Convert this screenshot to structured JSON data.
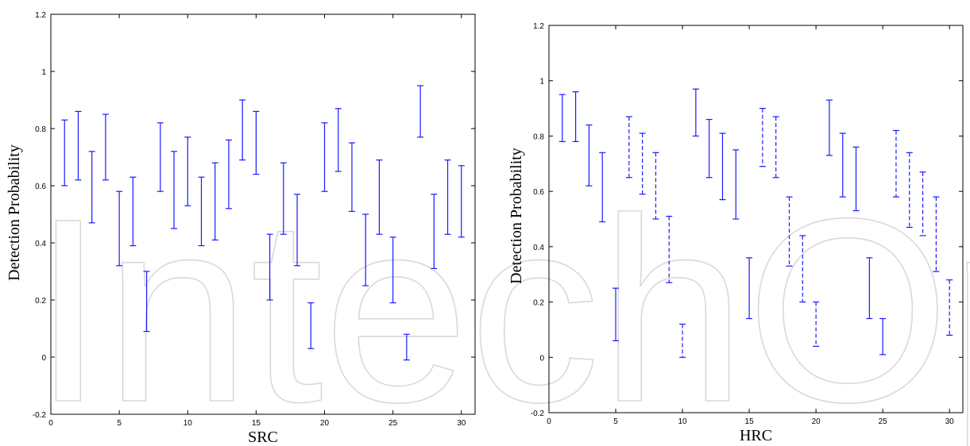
{
  "watermark": "IntechOpen",
  "colors": {
    "series": "#1a1aff",
    "axis": "#000000",
    "watermark": "#d9d9d9"
  },
  "chart_data": [
    {
      "type": "errorbar",
      "xlabel": "SRC",
      "ylabel": "Detection Probability",
      "xlim": [
        0,
        31
      ],
      "ylim": [
        -0.2,
        1.2
      ],
      "xticks": [
        0,
        5,
        10,
        15,
        20,
        25,
        30
      ],
      "yticks": [
        -0.2,
        0,
        0.2,
        0.4,
        0.6,
        0.8,
        1,
        1.2
      ],
      "ytick_labels": [
        "-0.2",
        "0",
        "0.2",
        "0.4",
        "0.6",
        "0.8",
        "1",
        "1.2"
      ],
      "intervals": [
        {
          "x": 1,
          "low": 0.6,
          "high": 0.83,
          "style": "solid"
        },
        {
          "x": 2,
          "low": 0.62,
          "high": 0.86,
          "style": "solid"
        },
        {
          "x": 3,
          "low": 0.47,
          "high": 0.72,
          "style": "solid"
        },
        {
          "x": 4,
          "low": 0.62,
          "high": 0.85,
          "style": "solid"
        },
        {
          "x": 5,
          "low": 0.32,
          "high": 0.58,
          "style": "solid"
        },
        {
          "x": 6,
          "low": 0.39,
          "high": 0.63,
          "style": "solid"
        },
        {
          "x": 7,
          "low": 0.09,
          "high": 0.3,
          "style": "solid"
        },
        {
          "x": 8,
          "low": 0.58,
          "high": 0.82,
          "style": "solid"
        },
        {
          "x": 9,
          "low": 0.45,
          "high": 0.72,
          "style": "solid"
        },
        {
          "x": 10,
          "low": 0.53,
          "high": 0.77,
          "style": "solid"
        },
        {
          "x": 11,
          "low": 0.39,
          "high": 0.63,
          "style": "solid"
        },
        {
          "x": 12,
          "low": 0.41,
          "high": 0.68,
          "style": "solid"
        },
        {
          "x": 13,
          "low": 0.52,
          "high": 0.76,
          "style": "solid"
        },
        {
          "x": 14,
          "low": 0.69,
          "high": 0.9,
          "style": "solid"
        },
        {
          "x": 15,
          "low": 0.64,
          "high": 0.86,
          "style": "solid"
        },
        {
          "x": 16,
          "low": 0.2,
          "high": 0.43,
          "style": "solid"
        },
        {
          "x": 17,
          "low": 0.43,
          "high": 0.68,
          "style": "solid"
        },
        {
          "x": 18,
          "low": 0.32,
          "high": 0.57,
          "style": "solid"
        },
        {
          "x": 19,
          "low": 0.03,
          "high": 0.19,
          "style": "solid"
        },
        {
          "x": 20,
          "low": 0.58,
          "high": 0.82,
          "style": "solid"
        },
        {
          "x": 21,
          "low": 0.65,
          "high": 0.87,
          "style": "solid"
        },
        {
          "x": 22,
          "low": 0.51,
          "high": 0.75,
          "style": "solid"
        },
        {
          "x": 23,
          "low": 0.25,
          "high": 0.5,
          "style": "solid"
        },
        {
          "x": 24,
          "low": 0.43,
          "high": 0.69,
          "style": "solid"
        },
        {
          "x": 25,
          "low": 0.19,
          "high": 0.42,
          "style": "solid"
        },
        {
          "x": 26,
          "low": -0.01,
          "high": 0.08,
          "style": "solid"
        },
        {
          "x": 27,
          "low": 0.77,
          "high": 0.95,
          "style": "solid"
        },
        {
          "x": 28,
          "low": 0.31,
          "high": 0.57,
          "style": "solid"
        },
        {
          "x": 29,
          "low": 0.43,
          "high": 0.69,
          "style": "solid"
        },
        {
          "x": 30,
          "low": 0.42,
          "high": 0.67,
          "style": "solid"
        }
      ]
    },
    {
      "type": "errorbar",
      "xlabel": "HRC",
      "ylabel": "Detection Probability",
      "xlim": [
        0,
        31
      ],
      "ylim": [
        -0.2,
        1.2
      ],
      "xticks": [
        0,
        5,
        10,
        15,
        20,
        25,
        30
      ],
      "yticks": [
        -0.2,
        0,
        0.2,
        0.4,
        0.6,
        0.8,
        1,
        1.2
      ],
      "ytick_labels": [
        "-0.2",
        "0",
        "0.2",
        "0.4",
        "0.6",
        "0.8",
        "1",
        "1.2"
      ],
      "intervals": [
        {
          "x": 1,
          "low": 0.78,
          "high": 0.95,
          "style": "solid"
        },
        {
          "x": 2,
          "low": 0.78,
          "high": 0.96,
          "style": "solid"
        },
        {
          "x": 3,
          "low": 0.62,
          "high": 0.84,
          "style": "solid"
        },
        {
          "x": 4,
          "low": 0.49,
          "high": 0.74,
          "style": "solid"
        },
        {
          "x": 5,
          "low": 0.06,
          "high": 0.25,
          "style": "solid"
        },
        {
          "x": 6,
          "low": 0.65,
          "high": 0.87,
          "style": "dashed"
        },
        {
          "x": 7,
          "low": 0.59,
          "high": 0.81,
          "style": "dashed"
        },
        {
          "x": 8,
          "low": 0.5,
          "high": 0.74,
          "style": "dashed"
        },
        {
          "x": 9,
          "low": 0.27,
          "high": 0.51,
          "style": "dashed"
        },
        {
          "x": 10,
          "low": 0.0,
          "high": 0.12,
          "style": "dashed"
        },
        {
          "x": 11,
          "low": 0.8,
          "high": 0.97,
          "style": "solid"
        },
        {
          "x": 12,
          "low": 0.65,
          "high": 0.86,
          "style": "solid"
        },
        {
          "x": 13,
          "low": 0.57,
          "high": 0.81,
          "style": "solid"
        },
        {
          "x": 14,
          "low": 0.5,
          "high": 0.75,
          "style": "solid"
        },
        {
          "x": 15,
          "low": 0.14,
          "high": 0.36,
          "style": "solid"
        },
        {
          "x": 16,
          "low": 0.69,
          "high": 0.9,
          "style": "dashed"
        },
        {
          "x": 17,
          "low": 0.65,
          "high": 0.87,
          "style": "dashed"
        },
        {
          "x": 18,
          "low": 0.33,
          "high": 0.58,
          "style": "dashed"
        },
        {
          "x": 19,
          "low": 0.2,
          "high": 0.44,
          "style": "dashed"
        },
        {
          "x": 20,
          "low": 0.04,
          "high": 0.2,
          "style": "dashed"
        },
        {
          "x": 21,
          "low": 0.73,
          "high": 0.93,
          "style": "solid"
        },
        {
          "x": 22,
          "low": 0.58,
          "high": 0.81,
          "style": "solid"
        },
        {
          "x": 23,
          "low": 0.53,
          "high": 0.76,
          "style": "solid"
        },
        {
          "x": 24,
          "low": 0.14,
          "high": 0.36,
          "style": "solid"
        },
        {
          "x": 25,
          "low": 0.01,
          "high": 0.14,
          "style": "solid"
        },
        {
          "x": 26,
          "low": 0.58,
          "high": 0.82,
          "style": "dashed"
        },
        {
          "x": 27,
          "low": 0.47,
          "high": 0.74,
          "style": "dashed"
        },
        {
          "x": 28,
          "low": 0.44,
          "high": 0.67,
          "style": "dashed"
        },
        {
          "x": 29,
          "low": 0.31,
          "high": 0.58,
          "style": "dashed"
        },
        {
          "x": 30,
          "low": 0.08,
          "high": 0.28,
          "style": "dashed"
        }
      ]
    }
  ]
}
